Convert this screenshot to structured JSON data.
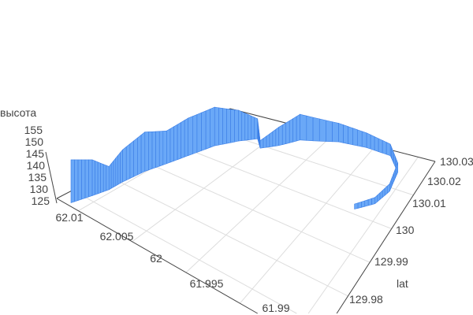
{
  "chart_data": {
    "type": "3d-ribbon",
    "xlabel": "",
    "ylabel": "lat",
    "zlabel": "высота",
    "x_ticks": [
      "62.01",
      "62.005",
      "62",
      "61.995",
      "61.99"
    ],
    "y_ticks": [
      "130.03",
      "130.02",
      "130.01",
      "130",
      "129.99",
      "129.98"
    ],
    "z_ticks": [
      "155",
      "150",
      "145",
      "140",
      "135",
      "130",
      "125"
    ],
    "xlim": [
      61.988,
      62.012
    ],
    "ylim": [
      129.975,
      130.03
    ],
    "zlim": [
      121,
      156
    ],
    "grid": true,
    "color": "#6aa8f7",
    "edge_color": "#3b7ee6",
    "points": [
      {
        "x": 62.011,
        "y": 129.9761,
        "z": 155
      },
      {
        "x": 62.0106,
        "y": 129.9816,
        "z": 150
      },
      {
        "x": 62.0103,
        "y": 129.986,
        "z": 140
      },
      {
        "x": 62.0103,
        "y": 129.9904,
        "z": 148
      },
      {
        "x": 62.0101,
        "y": 129.997,
        "z": 155
      },
      {
        "x": 62.0096,
        "y": 130.0025,
        "z": 150
      },
      {
        "x": 62.0091,
        "y": 130.008,
        "z": 155
      },
      {
        "x": 62.0084,
        "y": 130.0146,
        "z": 157
      },
      {
        "x": 62.0072,
        "y": 130.019,
        "z": 150
      },
      {
        "x": 62.006,
        "y": 130.0218,
        "z": 140
      },
      {
        "x": 62.0048,
        "y": 130.019,
        "z": 128
      },
      {
        "x": 62.0036,
        "y": 130.0218,
        "z": 138
      },
      {
        "x": 62.0024,
        "y": 130.0256,
        "z": 145
      },
      {
        "x": 61.9988,
        "y": 130.0284,
        "z": 138
      },
      {
        "x": 61.9957,
        "y": 130.0289,
        "z": 134
      },
      {
        "x": 61.9928,
        "y": 130.0284,
        "z": 131
      },
      {
        "x": 61.9909,
        "y": 130.0245,
        "z": 129
      },
      {
        "x": 61.9904,
        "y": 130.019,
        "z": 127
      },
      {
        "x": 61.9909,
        "y": 130.0146,
        "z": 126
      },
      {
        "x": 61.9923,
        "y": 130.0113,
        "z": 125
      }
    ]
  }
}
